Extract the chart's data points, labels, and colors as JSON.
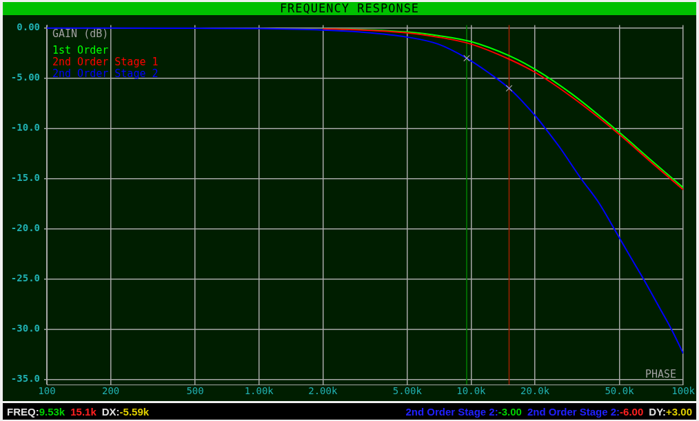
{
  "chart_data": {
    "type": "line",
    "title": "FREQUENCY RESPONSE",
    "ylabel": "GAIN (dB)",
    "log": "x",
    "grid": true,
    "legend": "top left",
    "marker": "none",
    "xlim": [
      100,
      100000
    ],
    "xticks": [
      {
        "value": 100,
        "label": "100"
      },
      {
        "value": 200,
        "label": "200"
      },
      {
        "value": 500,
        "label": "500"
      },
      {
        "value": 1000,
        "label": "1.00k"
      },
      {
        "value": 2000,
        "label": "2.00k"
      },
      {
        "value": 5000,
        "label": "5.00k"
      },
      {
        "value": 10000,
        "label": "10.0k"
      },
      {
        "value": 20000,
        "label": "20.0k"
      },
      {
        "value": 50000,
        "label": "50.0k"
      },
      {
        "value": 100000,
        "label": "100k"
      }
    ],
    "ylim": [
      -35.5,
      0.3
    ],
    "yticks": [
      {
        "value": 0,
        "label": "0.00"
      },
      {
        "value": -5,
        "label": "-5.00"
      },
      {
        "value": -10,
        "label": "-10.0"
      },
      {
        "value": -15,
        "label": "-15.0"
      },
      {
        "value": -20,
        "label": "-20.0"
      },
      {
        "value": -25,
        "label": "-25.0"
      },
      {
        "value": -30,
        "label": "-30.0"
      },
      {
        "value": -35,
        "label": "-35.0"
      }
    ],
    "x": [
      2000,
      3000,
      5000,
      7000,
      10000,
      15100,
      20000,
      30000,
      50000,
      70000,
      100000
    ],
    "series": [
      {
        "name": "1st Order",
        "color": "#00ff00",
        "values": [
          -0.07,
          -0.15,
          -0.4,
          -0.75,
          -1.35,
          -2.75,
          -4.1,
          -6.6,
          -10.4,
          -13.1,
          -15.9
        ]
      },
      {
        "name": "2nd Order Stage 1",
        "color": "#ff0000",
        "values": [
          -0.08,
          -0.18,
          -0.48,
          -0.9,
          -1.6,
          -3.1,
          -4.4,
          -6.9,
          -10.6,
          -13.3,
          -16.1
        ]
      },
      {
        "name": "2nd Order Stage 2",
        "color": "#0000ff",
        "x": [
          100,
          200,
          500,
          1000,
          2000,
          3000,
          5000,
          7000,
          9530,
          12000,
          15100,
          20000,
          22400,
          26000,
          33000,
          40000,
          47300,
          55000,
          65000,
          78000,
          88000,
          100000
        ],
        "values": [
          0,
          0,
          -0.02,
          -0.05,
          -0.2,
          -0.4,
          -0.9,
          -1.6,
          -3.0,
          -4.4,
          -6.0,
          -8.7,
          -10,
          -11.8,
          -15,
          -17.4,
          -20,
          -22.4,
          -25,
          -28,
          -30,
          -32.4
        ]
      },
      {
        "type": "scatter",
        "marker": "cross",
        "color": "#b0b0b0",
        "x": [
          9530,
          15100
        ],
        "values": [
          -3,
          -6
        ]
      }
    ],
    "ref_lines": [
      {
        "axis": "x",
        "value": 9530,
        "color": "#008000"
      },
      {
        "axis": "x",
        "value": 15100,
        "color": "#a02000"
      }
    ],
    "annotations": [
      "FREQ:9.53k",
      "15.1k",
      "DX:-5.59k",
      "2nd Order Stage 2:-3.00",
      "2nd Order Stage 2:-6.00",
      "DY:+3.00",
      "PHASE"
    ]
  }
}
